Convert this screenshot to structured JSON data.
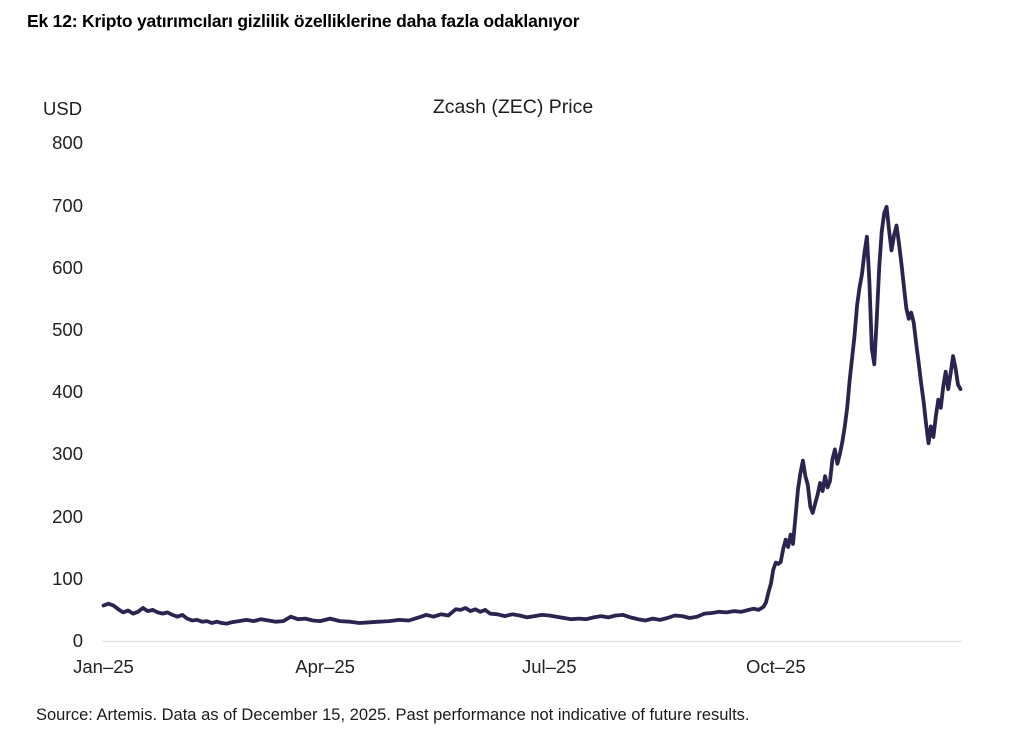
{
  "header": {
    "title": "Ek 12: Kripto yatırımcıları gizlilik özelliklerine daha fazla odaklanıyor"
  },
  "chart": {
    "unit_label": "USD",
    "title": "Zcash (ZEC) Price",
    "line_color": "#2a2550",
    "axis_line_color": "#e3e3e3"
  },
  "footer": {
    "source": "Source: Artemis. Data as of December 15, 2025. Past performance not indicative of future results."
  },
  "chart_data": {
    "type": "line",
    "title": "Zcash (ZEC) Price",
    "unit": "USD",
    "ylabel": "USD",
    "xlabel": "",
    "grid": false,
    "legend": "none",
    "ylim": [
      0,
      800
    ],
    "y_ticks": [
      0,
      100,
      200,
      300,
      400,
      500,
      600,
      700,
      800
    ],
    "x_tick_labels": [
      "Jan–25",
      "Apr–25",
      "Jul–25",
      "Oct–25"
    ],
    "x_tick_days": [
      0,
      90,
      181,
      273
    ],
    "x_range_days": [
      0,
      348
    ],
    "x_range_dates": [
      "2025-01-01",
      "2025-12-15"
    ],
    "series": [
      {
        "name": "Zcash (ZEC) price, USD",
        "points": [
          [
            0,
            57
          ],
          [
            2,
            60
          ],
          [
            4,
            57
          ],
          [
            6,
            51
          ],
          [
            8,
            46
          ],
          [
            10,
            49
          ],
          [
            12,
            44
          ],
          [
            14,
            47
          ],
          [
            16,
            53
          ],
          [
            18,
            48
          ],
          [
            20,
            50
          ],
          [
            22,
            46
          ],
          [
            24,
            44
          ],
          [
            26,
            46
          ],
          [
            28,
            42
          ],
          [
            30,
            39
          ],
          [
            32,
            42
          ],
          [
            34,
            36
          ],
          [
            36,
            33
          ],
          [
            38,
            34
          ],
          [
            40,
            31
          ],
          [
            42,
            32
          ],
          [
            44,
            29
          ],
          [
            46,
            31
          ],
          [
            48,
            29
          ],
          [
            50,
            28
          ],
          [
            52,
            30
          ],
          [
            55,
            32
          ],
          [
            58,
            34
          ],
          [
            61,
            32
          ],
          [
            64,
            35
          ],
          [
            67,
            33
          ],
          [
            70,
            31
          ],
          [
            73,
            32
          ],
          [
            76,
            39
          ],
          [
            79,
            35
          ],
          [
            82,
            36
          ],
          [
            85,
            33
          ],
          [
            88,
            32
          ],
          [
            92,
            36
          ],
          [
            96,
            32
          ],
          [
            100,
            31
          ],
          [
            104,
            29
          ],
          [
            108,
            30
          ],
          [
            112,
            31
          ],
          [
            116,
            32
          ],
          [
            120,
            34
          ],
          [
            124,
            33
          ],
          [
            128,
            38
          ],
          [
            131,
            42
          ],
          [
            134,
            39
          ],
          [
            137,
            43
          ],
          [
            140,
            41
          ],
          [
            143,
            51
          ],
          [
            145,
            50
          ],
          [
            147,
            53
          ],
          [
            149,
            48
          ],
          [
            151,
            51
          ],
          [
            153,
            47
          ],
          [
            155,
            50
          ],
          [
            157,
            44
          ],
          [
            160,
            43
          ],
          [
            163,
            40
          ],
          [
            166,
            43
          ],
          [
            169,
            41
          ],
          [
            172,
            38
          ],
          [
            175,
            40
          ],
          [
            178,
            42
          ],
          [
            181,
            41
          ],
          [
            184,
            39
          ],
          [
            187,
            37
          ],
          [
            190,
            35
          ],
          [
            193,
            36
          ],
          [
            196,
            35
          ],
          [
            199,
            38
          ],
          [
            202,
            40
          ],
          [
            205,
            38
          ],
          [
            208,
            41
          ],
          [
            211,
            42
          ],
          [
            214,
            38
          ],
          [
            217,
            35
          ],
          [
            220,
            33
          ],
          [
            223,
            36
          ],
          [
            226,
            34
          ],
          [
            229,
            37
          ],
          [
            232,
            41
          ],
          [
            235,
            40
          ],
          [
            238,
            37
          ],
          [
            241,
            39
          ],
          [
            244,
            44
          ],
          [
            247,
            45
          ],
          [
            250,
            47
          ],
          [
            253,
            46
          ],
          [
            256,
            48
          ],
          [
            259,
            47
          ],
          [
            262,
            50
          ],
          [
            264,
            52
          ],
          [
            266,
            50
          ],
          [
            268,
            55
          ],
          [
            269,
            62
          ],
          [
            270,
            78
          ],
          [
            271,
            92
          ],
          [
            272,
            115
          ],
          [
            273,
            126
          ],
          [
            274,
            124
          ],
          [
            275,
            127
          ],
          [
            276,
            148
          ],
          [
            277,
            163
          ],
          [
            278,
            151
          ],
          [
            279,
            171
          ],
          [
            280,
            156
          ],
          [
            281,
            200
          ],
          [
            282,
            244
          ],
          [
            283,
            270
          ],
          [
            284,
            290
          ],
          [
            285,
            265
          ],
          [
            286,
            251
          ],
          [
            287,
            216
          ],
          [
            288,
            206
          ],
          [
            289,
            221
          ],
          [
            290,
            236
          ],
          [
            291,
            254
          ],
          [
            292,
            241
          ],
          [
            293,
            265
          ],
          [
            294,
            247
          ],
          [
            295,
            257
          ],
          [
            296,
            292
          ],
          [
            297,
            308
          ],
          [
            298,
            285
          ],
          [
            299,
            300
          ],
          [
            300,
            320
          ],
          [
            301,
            345
          ],
          [
            302,
            375
          ],
          [
            303,
            420
          ],
          [
            304,
            455
          ],
          [
            305,
            492
          ],
          [
            306,
            540
          ],
          [
            307,
            568
          ],
          [
            308,
            590
          ],
          [
            309,
            625
          ],
          [
            310,
            650
          ],
          [
            311,
            578
          ],
          [
            312,
            470
          ],
          [
            313,
            445
          ],
          [
            314,
            520
          ],
          [
            315,
            600
          ],
          [
            316,
            658
          ],
          [
            317,
            688
          ],
          [
            318,
            698
          ],
          [
            319,
            660
          ],
          [
            320,
            628
          ],
          [
            321,
            652
          ],
          [
            322,
            668
          ],
          [
            323,
            640
          ],
          [
            324,
            607
          ],
          [
            325,
            570
          ],
          [
            326,
            535
          ],
          [
            327,
            518
          ],
          [
            328,
            528
          ],
          [
            329,
            512
          ],
          [
            330,
            478
          ],
          [
            331,
            448
          ],
          [
            332,
            415
          ],
          [
            333,
            385
          ],
          [
            334,
            350
          ],
          [
            335,
            318
          ],
          [
            336,
            345
          ],
          [
            337,
            328
          ],
          [
            338,
            362
          ],
          [
            339,
            388
          ],
          [
            340,
            375
          ],
          [
            341,
            410
          ],
          [
            342,
            433
          ],
          [
            343,
            405
          ],
          [
            344,
            430
          ],
          [
            345,
            458
          ],
          [
            346,
            438
          ],
          [
            347,
            412
          ],
          [
            348,
            405
          ]
        ]
      }
    ]
  }
}
